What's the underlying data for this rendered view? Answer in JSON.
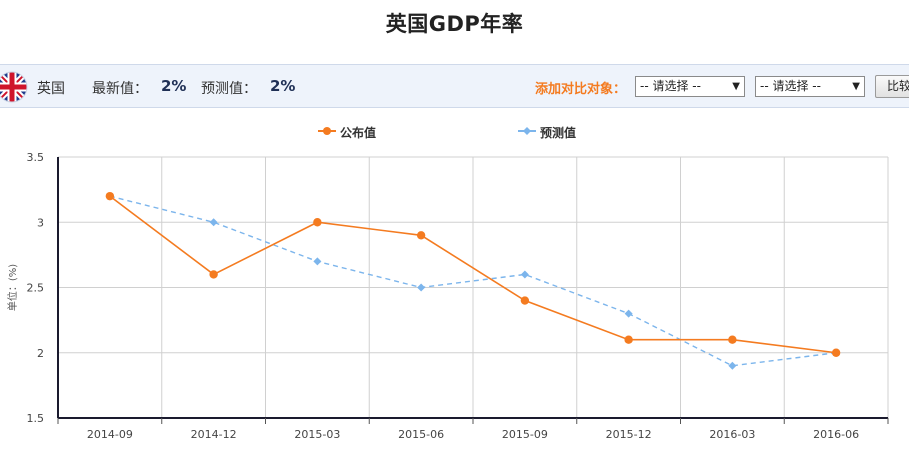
{
  "page": {
    "title": "英国GDP年率"
  },
  "info_bar": {
    "country": "英国",
    "latest_label": "最新值：",
    "latest_value": "2%",
    "forecast_label": "预测值：",
    "forecast_value": "2%",
    "compare_label": "添加对比对象：",
    "select1": "-- 请选择 --",
    "select2": "-- 请选择 --",
    "compare_button": "比较"
  },
  "colors": {
    "published": "#f47b20",
    "forecast": "#7cb5ec",
    "accent": "#f47b20"
  },
  "chart_data": {
    "type": "line",
    "title": "",
    "ylabel": "单位：(%)",
    "categories": [
      "2014-09",
      "2014-12",
      "2015-03",
      "2015-06",
      "2015-09",
      "2015-12",
      "2016-03",
      "2016-06"
    ],
    "ylim": [
      1.5,
      3.5
    ],
    "yticks": [
      1.5,
      2,
      2.5,
      3,
      3.5
    ],
    "grid": true,
    "legend_position": "top",
    "series": [
      {
        "name": "公布值",
        "style": "solid",
        "marker": "circle",
        "values": [
          3.2,
          2.6,
          3.0,
          2.9,
          2.4,
          2.1,
          2.1,
          2.0
        ]
      },
      {
        "name": "预测值",
        "style": "dashed",
        "marker": "diamond",
        "values": [
          3.2,
          3.0,
          2.7,
          2.5,
          2.6,
          2.3,
          1.9,
          2.0
        ]
      }
    ]
  }
}
